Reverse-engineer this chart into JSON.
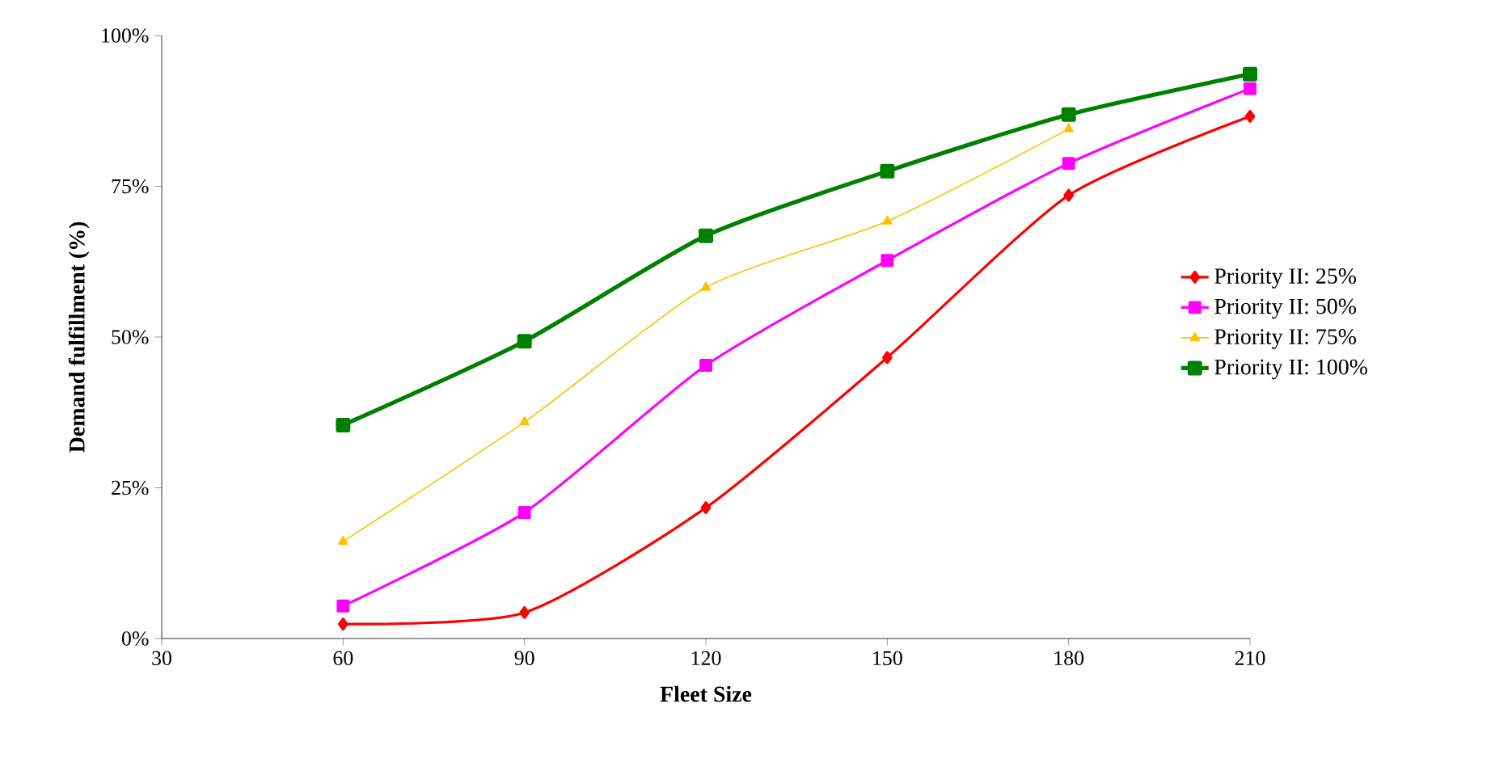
{
  "chart_data": {
    "type": "line",
    "xlabel": "Fleet Size",
    "ylabel": "Demand fulfillment (%)",
    "x": [
      60,
      90,
      120,
      150,
      180,
      210
    ],
    "series": [
      {
        "name": "Priority II: 25%",
        "color": "#ff0000",
        "marker": "diamond",
        "values": [
          0.024,
          0.043,
          0.217,
          0.466,
          0.735,
          0.866
        ]
      },
      {
        "name": "Priority II: 50%",
        "color": "#ff00ff",
        "marker": "square",
        "values": [
          0.054,
          0.209,
          0.453,
          0.627,
          0.788,
          0.912
        ]
      },
      {
        "name": "Priority II: 75%",
        "color": "#ffc000",
        "marker": "triangle",
        "values": [
          0.161,
          0.359,
          0.582,
          0.692,
          0.845,
          null
        ]
      },
      {
        "name": "Priority II: 100%",
        "color": "#008000",
        "marker": "square",
        "values": [
          0.354,
          0.493,
          0.668,
          0.775,
          0.869,
          0.936
        ]
      }
    ],
    "xlim": [
      30,
      210
    ],
    "xticks": [
      30,
      60,
      90,
      120,
      150,
      180,
      210
    ],
    "ylim": [
      0,
      1
    ],
    "yticks": [
      {
        "value": 0,
        "label": "0%"
      },
      {
        "value": 0.25,
        "label": "25%"
      },
      {
        "value": 0.5,
        "label": "50%"
      },
      {
        "value": 0.75,
        "label": "75%"
      },
      {
        "value": 1,
        "label": "100%"
      }
    ],
    "grid": false,
    "legend": "right",
    "line_style": "solid"
  }
}
